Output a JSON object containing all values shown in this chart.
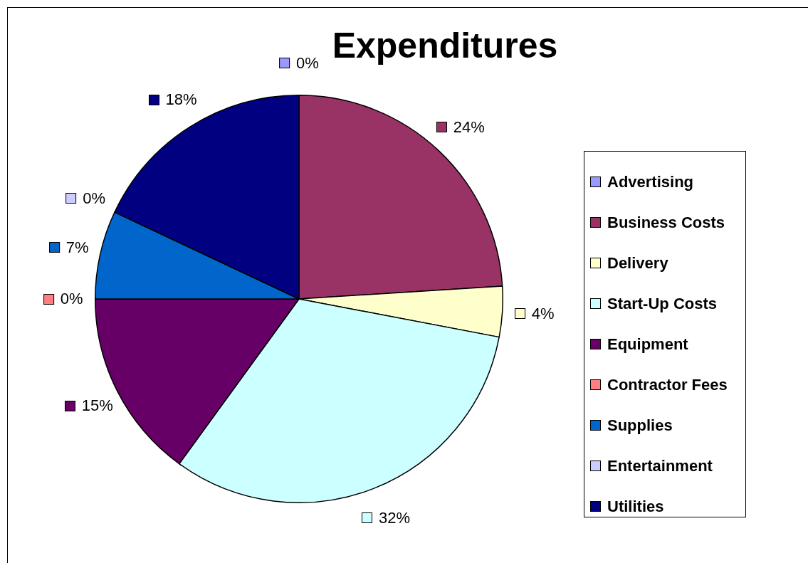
{
  "chart_data": {
    "type": "pie",
    "title": "Expenditures",
    "categories": [
      "Advertising",
      "Business Costs",
      "Delivery",
      "Start-Up Costs",
      "Equipment",
      "Contractor Fees",
      "Supplies",
      "Entertainment",
      "Utilities"
    ],
    "values": [
      0,
      24,
      4,
      32,
      15,
      0,
      7,
      0,
      18
    ],
    "value_labels": [
      "0%",
      "24%",
      "4%",
      "32%",
      "15%",
      "0%",
      "7%",
      "0%",
      "18%"
    ],
    "colors": [
      "#9999ff",
      "#993366",
      "#ffffcc",
      "#ccffff",
      "#660066",
      "#ff8080",
      "#0066cc",
      "#ccccff",
      "#000080"
    ],
    "legend": "right"
  }
}
